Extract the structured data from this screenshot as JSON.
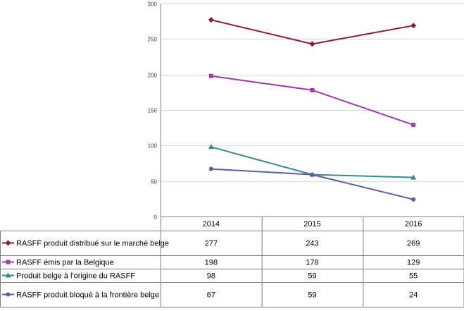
{
  "chart_data": {
    "type": "line",
    "categories": [
      "2014",
      "2015",
      "2016"
    ],
    "ylim": [
      0,
      300
    ],
    "yticks": [
      0,
      50,
      100,
      150,
      200,
      250,
      300
    ],
    "grid": "horizontal",
    "legend": "data-table-below",
    "series": [
      {
        "name": "RASFF produit distribué sur le marché belge",
        "values": [
          277,
          243,
          269
        ],
        "color": "#8b1a3c",
        "marker": "diamond"
      },
      {
        "name": "RASFF émis par la Belgique",
        "values": [
          198,
          178,
          129
        ],
        "color": "#9b3ea8",
        "marker": "square"
      },
      {
        "name": "Produit belge à l'origine du RASFF",
        "values": [
          98,
          59,
          55
        ],
        "color": "#3a8a8a",
        "marker": "triangle"
      },
      {
        "name": "RASFF produit bloqué à la frontière belge",
        "values": [
          67,
          59,
          24
        ],
        "color": "#5a5f9e",
        "marker": "circle"
      }
    ]
  }
}
